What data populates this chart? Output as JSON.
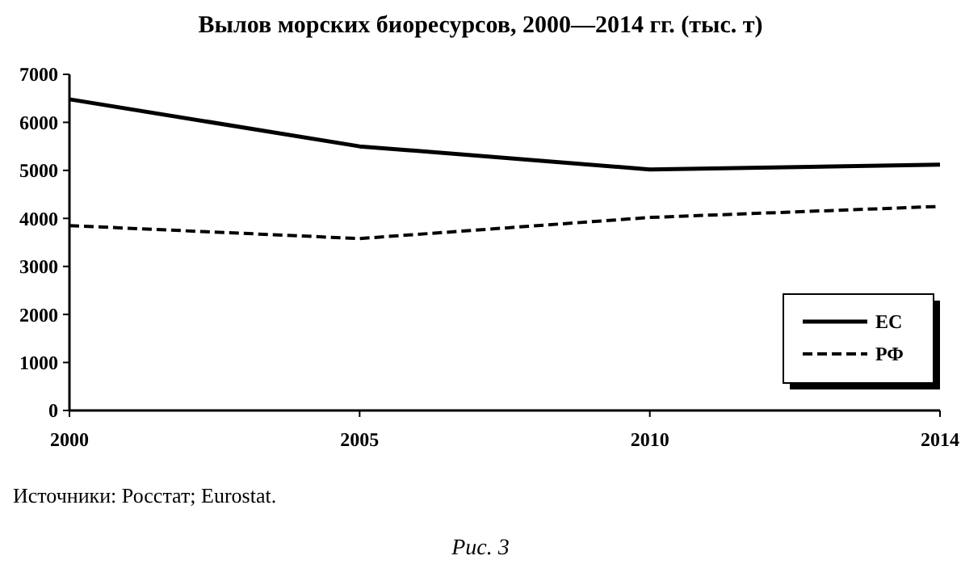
{
  "chart_data": {
    "type": "line",
    "title": "Вылов морских биоресурсов, 2000—2014 гг. (тыс. т)",
    "categories": [
      "2000",
      "2005",
      "2010",
      "2014"
    ],
    "series": [
      {
        "name": "ЕС",
        "color": "#000000",
        "values": [
          6480,
          5500,
          5020,
          5120
        ],
        "line_style": "solid"
      },
      {
        "name": "РФ",
        "color": "#000000",
        "values": [
          3850,
          3580,
          4020,
          4250
        ],
        "line_style": "dashed"
      }
    ],
    "ylim": [
      0,
      7000
    ],
    "yticks": [
      0,
      1000,
      2000,
      3000,
      4000,
      5000,
      6000,
      7000
    ],
    "grid": false,
    "legend": "bottom right",
    "marker": "none",
    "annotations": [
      "Источники: Росстат; Eurostat.",
      "Рис. 3"
    ]
  }
}
